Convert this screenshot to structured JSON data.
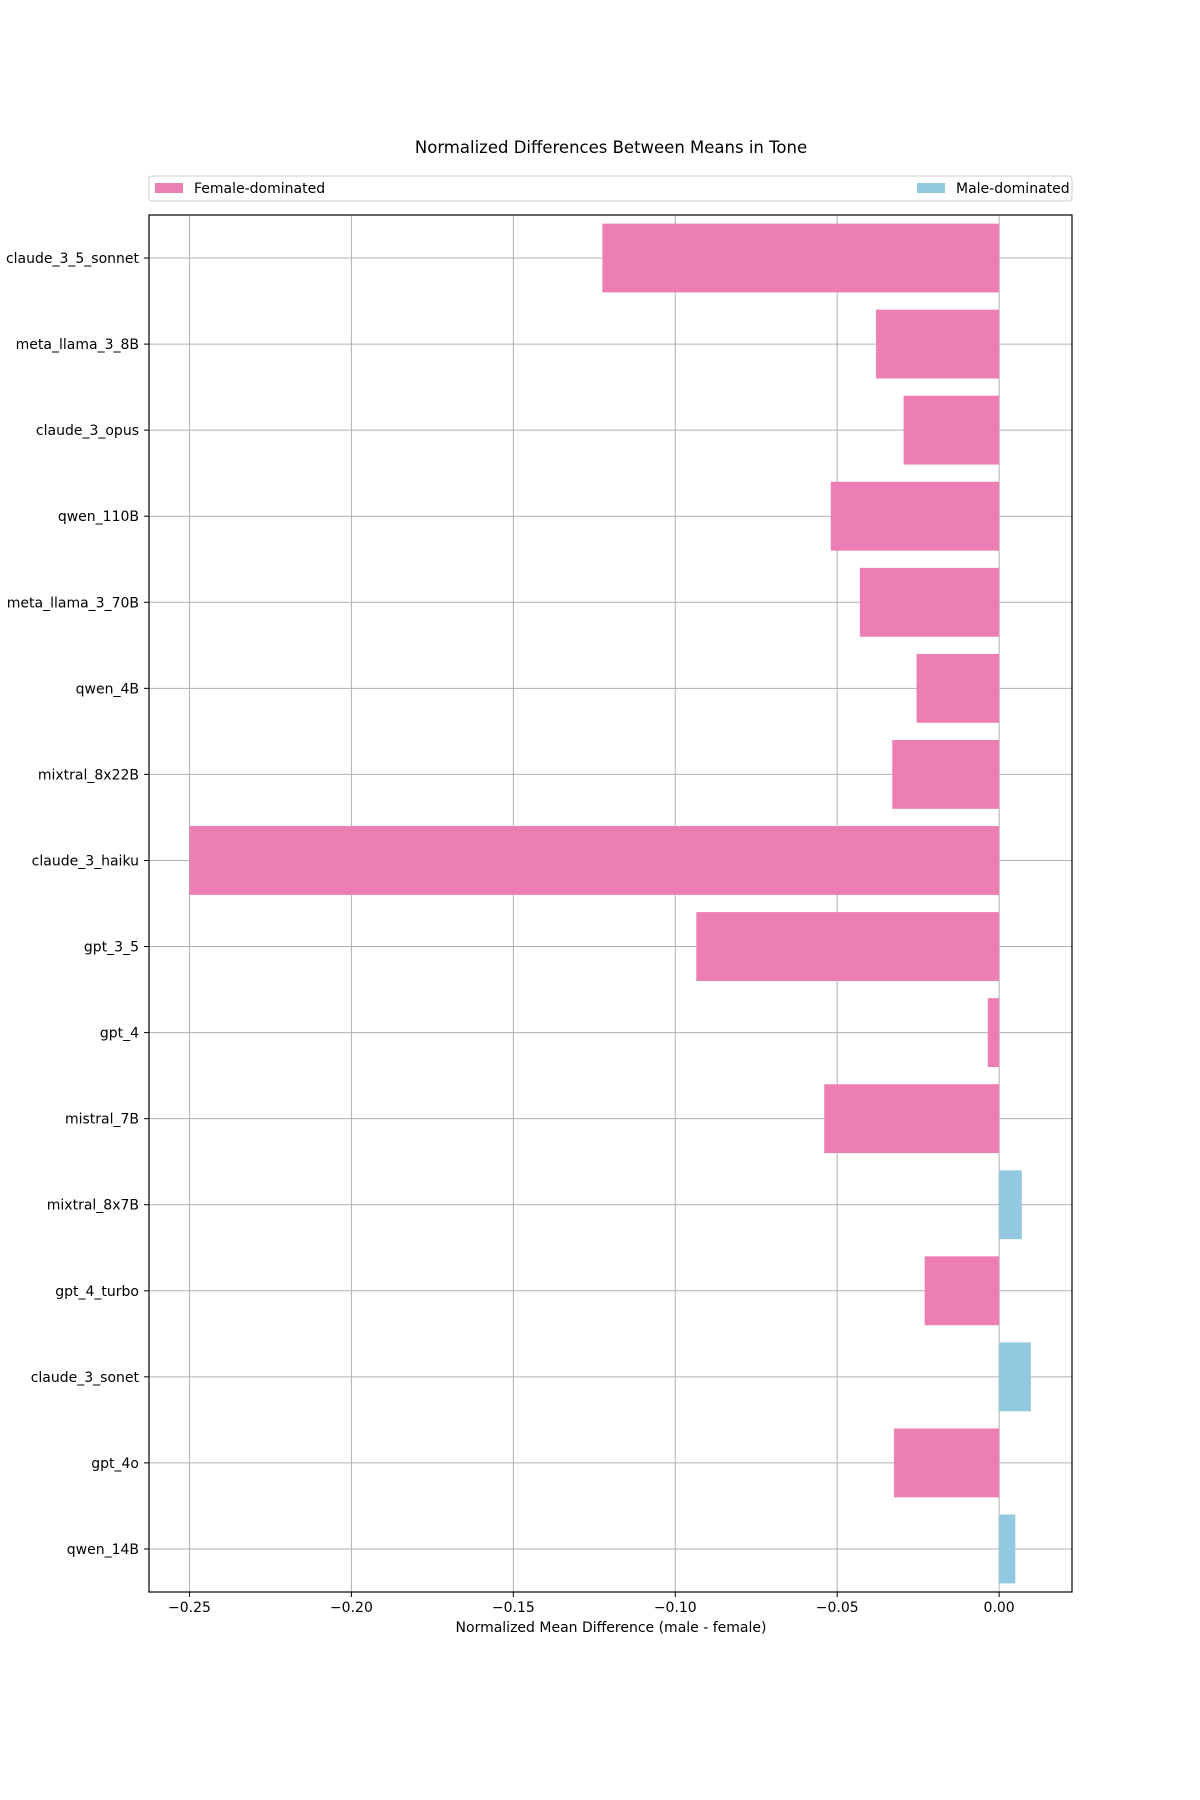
{
  "chart_data": {
    "type": "bar",
    "orientation": "horizontal",
    "title": "Normalized Differences Between Means in Tone",
    "xlabel": "Normalized Mean Difference (male - female)",
    "ylabel": "",
    "xlim": [
      -0.2625,
      0.0225
    ],
    "xticks": [
      -0.25,
      -0.2,
      -0.15,
      -0.1,
      -0.05,
      0.0
    ],
    "xtick_labels": [
      "−0.25",
      "−0.20",
      "−0.15",
      "−0.10",
      "−0.05",
      "0.00"
    ],
    "grid": true,
    "legend": {
      "placement": "top, spanning full width above the axes",
      "entries": [
        {
          "label": "Female-dominated",
          "color": "#ec7eb4"
        },
        {
          "label": "Male-dominated",
          "color": "#93c9e0"
        }
      ]
    },
    "categories": [
      "claude_3_5_sonnet",
      "meta_llama_3_8B",
      "claude_3_opus",
      "qwen_110B",
      "meta_llama_3_70B",
      "qwen_4B",
      "mixtral_8x22B",
      "claude_3_haiku",
      "gpt_3_5",
      "gpt_4",
      "mistral_7B",
      "mixtral_8x7B",
      "gpt_4_turbo",
      "claude_3_sonet",
      "gpt_4o",
      "qwen_14B"
    ],
    "values": [
      -0.1225,
      -0.038,
      -0.0295,
      -0.052,
      -0.043,
      -0.0255,
      -0.033,
      -0.25,
      -0.0935,
      -0.0035,
      -0.054,
      0.007,
      -0.023,
      0.0098,
      -0.0325,
      0.005
    ],
    "colors": {
      "negative": "#ec7eb4",
      "positive": "#93c9e0",
      "grid": "#b0b0b0",
      "axis": "#000000",
      "legend_border": "#cccccc"
    }
  }
}
